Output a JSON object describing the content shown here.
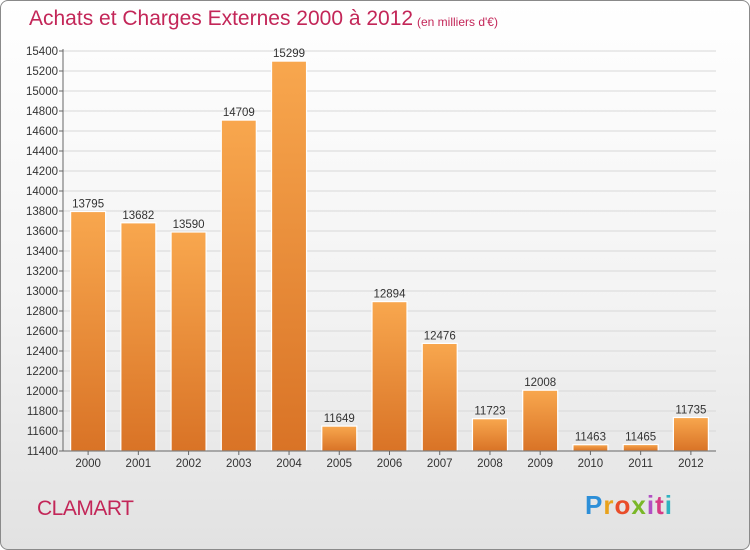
{
  "header": {
    "title": "Achats et Charges Externes 2000 à 2012",
    "subtitle": "(en milliers d'€)"
  },
  "footer": {
    "city": "CLAMART",
    "brand_letters": [
      {
        "ch": "P",
        "color": "#2d8fd8"
      },
      {
        "ch": "r",
        "color": "#e8a21c"
      },
      {
        "ch": "o",
        "color": "#e94d2a"
      },
      {
        "ch": "x",
        "color": "#7ab728"
      },
      {
        "ch": "i",
        "color": "#b14fc4"
      },
      {
        "ch": "t",
        "color": "#d63a86"
      },
      {
        "ch": "i",
        "color": "#2fb3c0"
      }
    ]
  },
  "colors": {
    "accent": "#c32658",
    "bar_light": "#f8a74e",
    "bar_dark": "#d97326",
    "grid": "#d8d8d8",
    "axis": "#666666"
  },
  "chart_data": {
    "type": "bar",
    "title": "Achats et Charges Externes 2000 à 2012",
    "subtitle": "(en milliers d'€)",
    "categories": [
      "2000",
      "2001",
      "2002",
      "2003",
      "2004",
      "2005",
      "2006",
      "2007",
      "2008",
      "2009",
      "2010",
      "2011",
      "2012"
    ],
    "values": [
      13795,
      13682,
      13590,
      14709,
      15299,
      11649,
      12894,
      12476,
      11723,
      12008,
      11463,
      11465,
      11735
    ],
    "ylim": [
      11400,
      15400
    ],
    "ytick_step": 200,
    "grid": true,
    "data_labels": true
  }
}
